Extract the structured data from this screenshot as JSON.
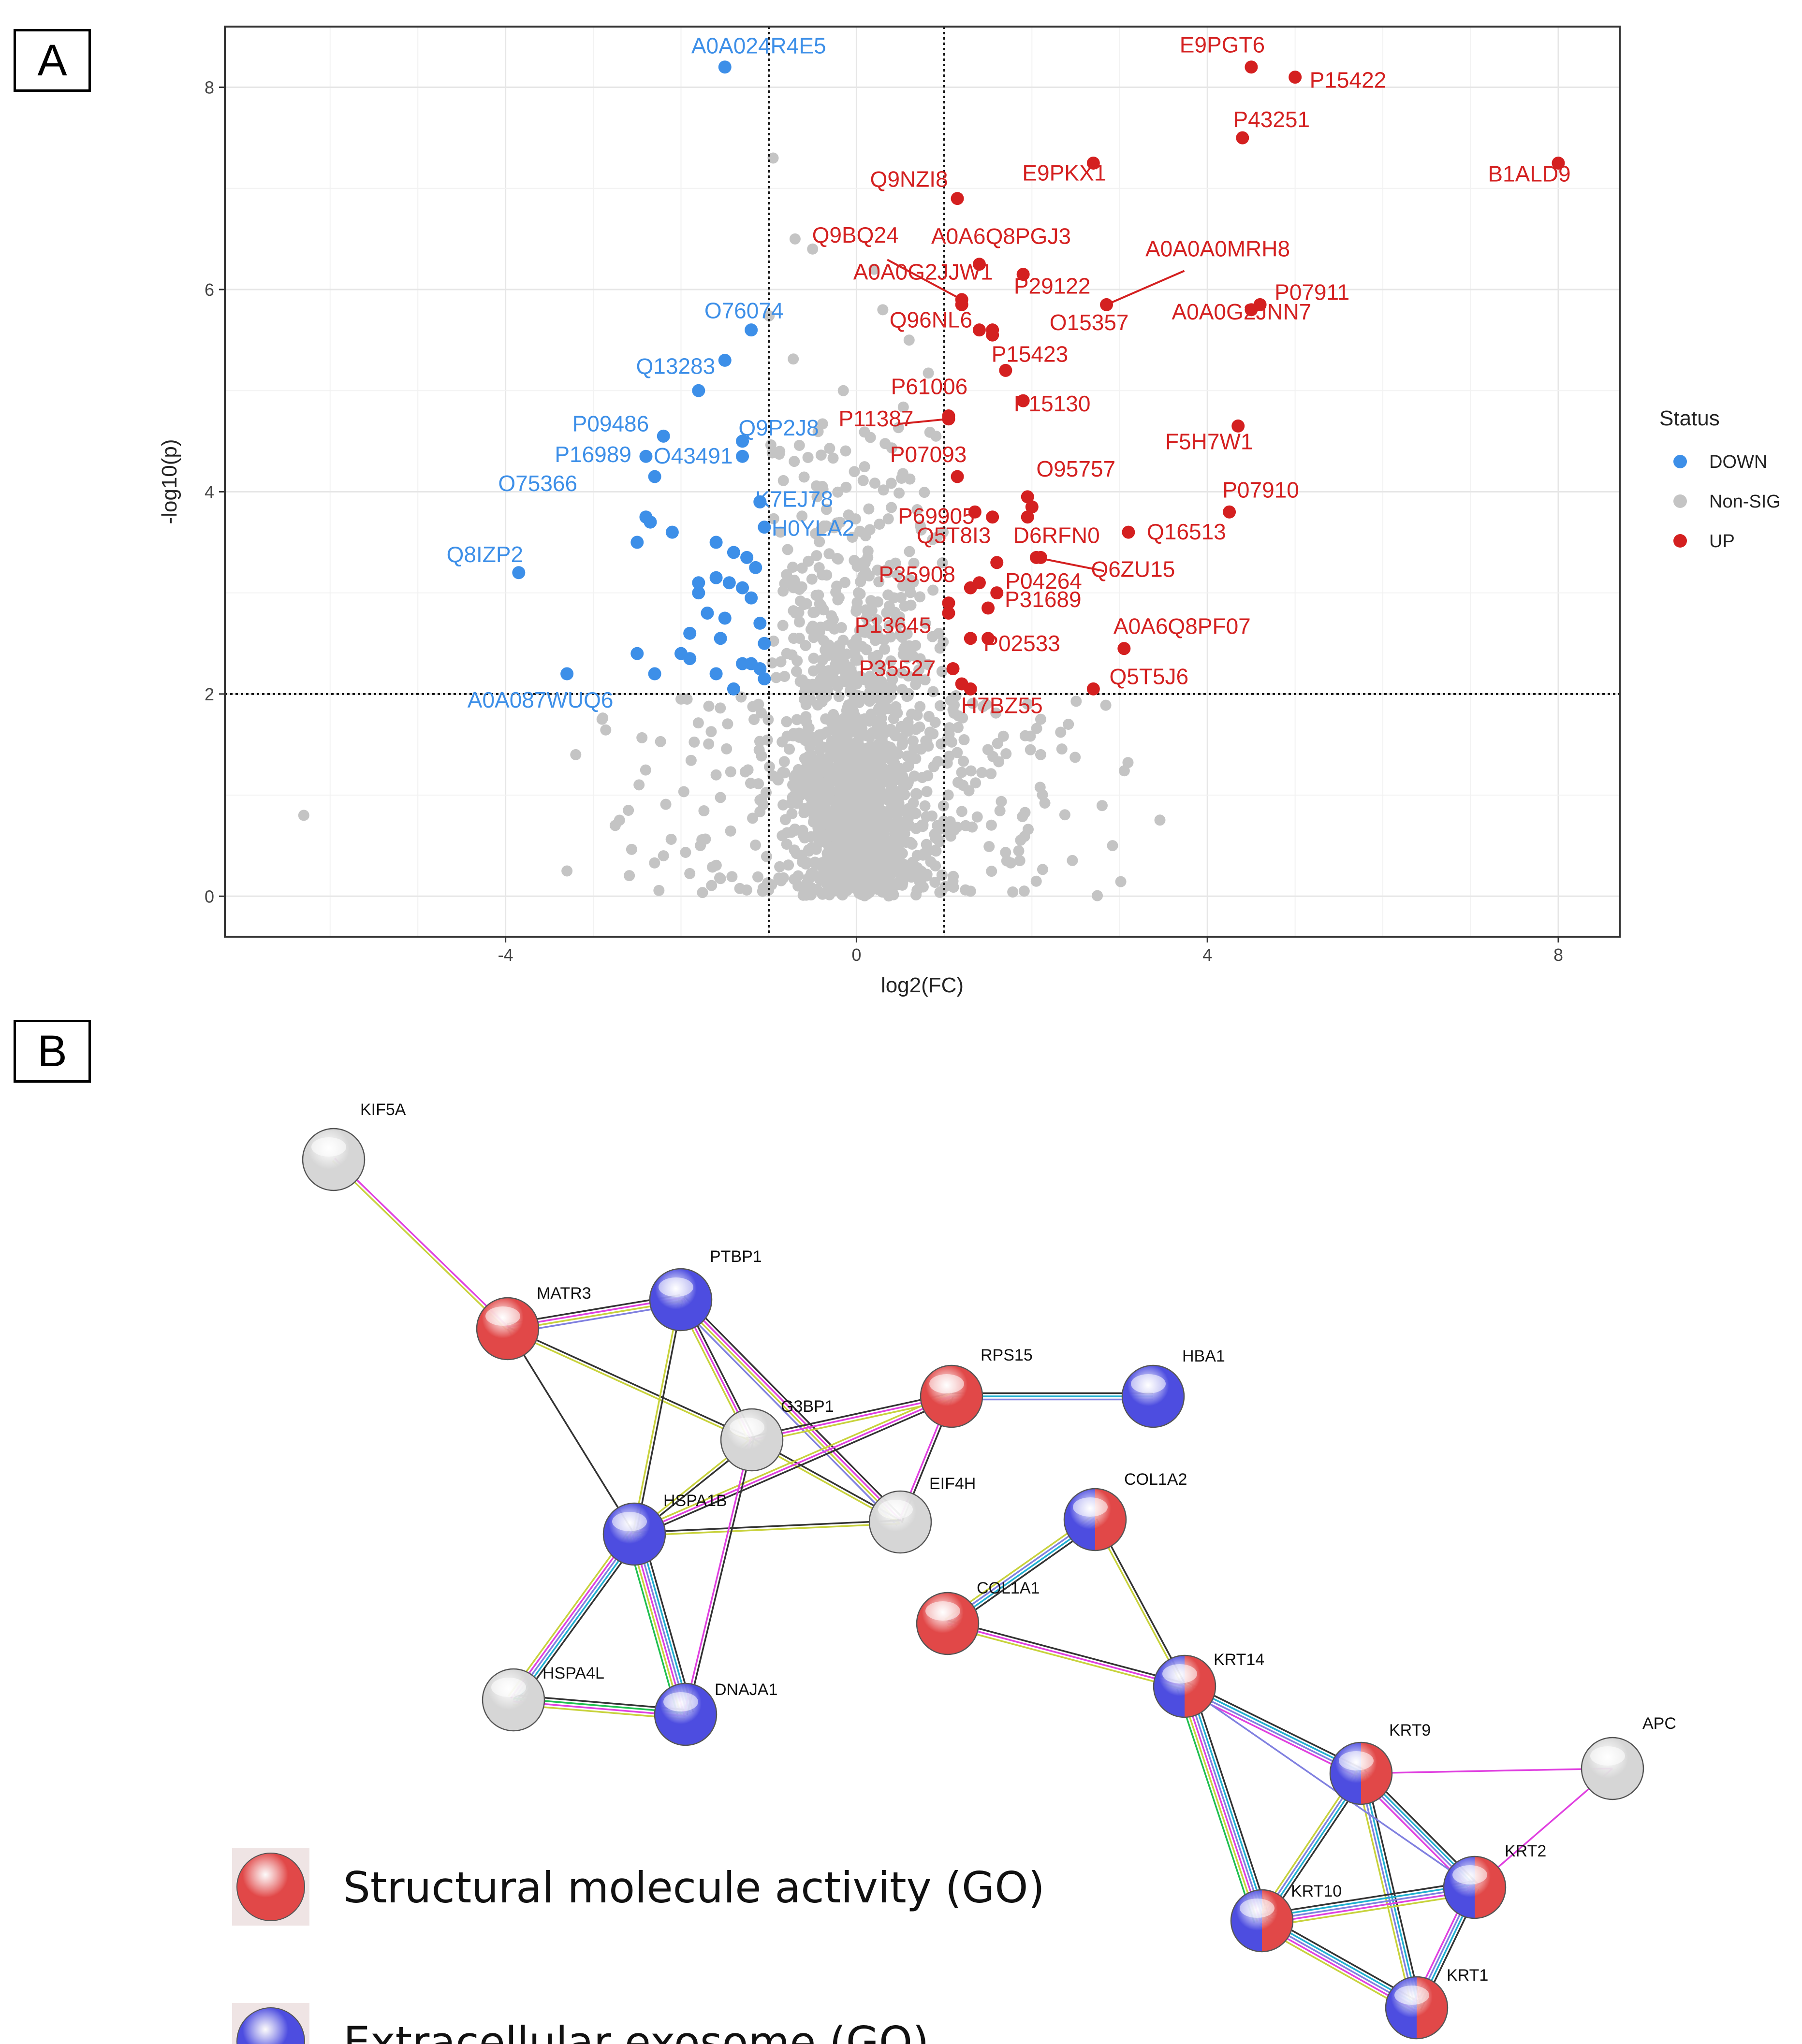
{
  "panels": {
    "a": "A",
    "b": "B"
  },
  "chart_data": {
    "type": "scatter",
    "xlabel": "log2(FC)",
    "ylabel": "-log10(p)",
    "xlim": [
      -7.2,
      8.7
    ],
    "ylim": [
      -0.4,
      8.6
    ],
    "x_ticks": [
      -4,
      0,
      4,
      8
    ],
    "y_ticks": [
      0,
      2,
      4,
      6,
      8
    ],
    "grid": true,
    "thresholds": {
      "x": [
        -1,
        1
      ],
      "y": 2
    },
    "legend": {
      "title": "Status",
      "position": "right",
      "items": [
        {
          "label": "DOWN",
          "color": "#3d8fe8"
        },
        {
          "label": "Non-SIG",
          "color": "#c4c4c4"
        },
        {
          "label": "UP",
          "color": "#d42020"
        }
      ]
    },
    "colors": {
      "DOWN": "#3d8fe8",
      "NON_SIG": "#c4c4c4",
      "UP": "#d42020"
    },
    "labeled_points": [
      {
        "label": "A0A024R4E5",
        "x": -1.5,
        "y": 8.2,
        "status": "DOWN"
      },
      {
        "label": "O76074",
        "x": -1.2,
        "y": 5.6,
        "status": "DOWN"
      },
      {
        "label": "Q13283",
        "x": -1.5,
        "y": 5.3,
        "status": "DOWN"
      },
      {
        "label": "P09486",
        "x": -2.2,
        "y": 4.55,
        "status": "DOWN"
      },
      {
        "label": "Q9P2J8",
        "x": -1.3,
        "y": 4.5,
        "status": "DOWN"
      },
      {
        "label": "P16989",
        "x": -2.4,
        "y": 4.35,
        "status": "DOWN"
      },
      {
        "label": "O43491",
        "x": -1.3,
        "y": 4.35,
        "status": "DOWN"
      },
      {
        "label": "O75366",
        "x": -2.3,
        "y": 4.15,
        "status": "DOWN"
      },
      {
        "label": "K7EJ78",
        "x": -1.1,
        "y": 3.9,
        "status": "DOWN"
      },
      {
        "label": "H0YLA2",
        "x": -1.05,
        "y": 3.65,
        "status": "DOWN"
      },
      {
        "label": "Q8IZP2",
        "x": -3.85,
        "y": 3.2,
        "status": "DOWN"
      },
      {
        "label": "A0A087WUQ6",
        "x": -3.3,
        "y": 2.2,
        "status": "DOWN"
      },
      {
        "label": "E9PGT6",
        "x": 4.5,
        "y": 8.2,
        "status": "UP"
      },
      {
        "label": "P15422",
        "x": 5.0,
        "y": 8.1,
        "status": "UP"
      },
      {
        "label": "P43251",
        "x": 4.4,
        "y": 7.5,
        "status": "UP"
      },
      {
        "label": "B1ALD9",
        "x": 8.0,
        "y": 7.25,
        "status": "UP"
      },
      {
        "label": "E9PKX1",
        "x": 2.7,
        "y": 7.25,
        "status": "UP"
      },
      {
        "label": "Q9NZI8",
        "x": 1.15,
        "y": 6.9,
        "status": "UP"
      },
      {
        "label": "Q9BQ24",
        "x": 1.2,
        "y": 5.9,
        "status": "UP"
      },
      {
        "label": "A0A6Q8PGJ3",
        "x": 1.4,
        "y": 6.25,
        "status": "UP"
      },
      {
        "label": "A0A0G2JJW1",
        "x": 1.2,
        "y": 5.85,
        "status": "UP"
      },
      {
        "label": "P29122",
        "x": 1.9,
        "y": 6.15,
        "status": "UP"
      },
      {
        "label": "A0A0A0MRH8",
        "x": 2.85,
        "y": 5.85,
        "status": "UP"
      },
      {
        "label": "P07911",
        "x": 4.6,
        "y": 5.85,
        "status": "UP"
      },
      {
        "label": "Q96NL6",
        "x": 1.4,
        "y": 5.6,
        "status": "UP"
      },
      {
        "label": "O15357",
        "x": 1.55,
        "y": 5.55,
        "status": "UP"
      },
      {
        "label": "A0A0G2JNN7",
        "x": 4.5,
        "y": 5.8,
        "status": "UP"
      },
      {
        "label": "P15423",
        "x": 1.7,
        "y": 5.2,
        "status": "UP"
      },
      {
        "label": "P61006",
        "x": 1.05,
        "y": 4.75,
        "status": "UP"
      },
      {
        "label": "P11387",
        "x": 1.05,
        "y": 4.72,
        "status": "UP"
      },
      {
        "label": "P15130",
        "x": 1.9,
        "y": 4.9,
        "status": "UP"
      },
      {
        "label": "F5H7W1",
        "x": 4.35,
        "y": 4.65,
        "status": "UP"
      },
      {
        "label": "P07093",
        "x": 1.15,
        "y": 4.15,
        "status": "UP"
      },
      {
        "label": "O95757",
        "x": 1.95,
        "y": 3.95,
        "status": "UP"
      },
      {
        "label": "P07910",
        "x": 4.25,
        "y": 3.8,
        "status": "UP"
      },
      {
        "label": "P69905",
        "x": 1.35,
        "y": 3.8,
        "status": "UP"
      },
      {
        "label": "D6RFN0",
        "x": 1.95,
        "y": 3.75,
        "status": "UP"
      },
      {
        "label": "Q16513",
        "x": 3.1,
        "y": 3.6,
        "status": "UP"
      },
      {
        "label": "Q5T8I3",
        "x": 1.55,
        "y": 3.75,
        "status": "UP"
      },
      {
        "label": "Q6ZU15",
        "x": 2.05,
        "y": 3.35,
        "status": "UP"
      },
      {
        "label": "P35908",
        "x": 1.6,
        "y": 3.3,
        "status": "UP"
      },
      {
        "label": "P31689",
        "x": 1.3,
        "y": 3.05,
        "status": "UP"
      },
      {
        "label": "P13645",
        "x": 1.05,
        "y": 2.9,
        "status": "UP"
      },
      {
        "label": "P04264",
        "x": 1.5,
        "y": 2.85,
        "status": "UP"
      },
      {
        "label": "A0A6Q8PF07",
        "x": 3.05,
        "y": 2.45,
        "status": "UP"
      },
      {
        "label": "P35527",
        "x": 1.1,
        "y": 2.25,
        "status": "UP"
      },
      {
        "label": "P02533",
        "x": 1.5,
        "y": 2.55,
        "status": "UP"
      },
      {
        "label": "Q5T5J6",
        "x": 2.7,
        "y": 2.05,
        "status": "UP"
      },
      {
        "label": "H7BZ55",
        "x": 1.3,
        "y": 2.05,
        "status": "UP"
      }
    ],
    "unlabeled_down": [
      [
        -1.8,
        5.0
      ],
      [
        -2.4,
        3.75
      ],
      [
        -2.35,
        3.7
      ],
      [
        -2.5,
        3.5
      ],
      [
        -1.6,
        3.5
      ],
      [
        -1.4,
        3.4
      ],
      [
        -1.25,
        3.35
      ],
      [
        -1.15,
        3.25
      ],
      [
        -1.6,
        3.15
      ],
      [
        -1.45,
        3.1
      ],
      [
        -1.3,
        3.05
      ],
      [
        -1.8,
        3.0
      ],
      [
        -1.2,
        2.95
      ],
      [
        -1.7,
        2.8
      ],
      [
        -1.5,
        2.75
      ],
      [
        -1.1,
        2.7
      ],
      [
        -1.9,
        2.6
      ],
      [
        -1.55,
        2.55
      ],
      [
        -1.05,
        2.5
      ],
      [
        -2.5,
        2.4
      ],
      [
        -1.9,
        2.35
      ],
      [
        -2.0,
        2.4
      ],
      [
        -1.3,
        2.3
      ],
      [
        -1.1,
        2.25
      ],
      [
        -2.3,
        2.2
      ],
      [
        -1.6,
        2.2
      ],
      [
        -1.05,
        2.15
      ],
      [
        -1.2,
        2.3
      ],
      [
        -1.4,
        2.05
      ],
      [
        -2.1,
        3.6
      ],
      [
        -1.8,
        3.1
      ],
      [
        -1.1,
        3.9
      ]
    ],
    "unlabeled_up": [
      [
        1.55,
        5.6
      ],
      [
        2.0,
        3.85
      ],
      [
        1.3,
        2.55
      ],
      [
        1.2,
        2.1
      ],
      [
        1.05,
        2.8
      ],
      [
        1.6,
        3.0
      ],
      [
        2.1,
        3.35
      ],
      [
        1.4,
        3.1
      ]
    ],
    "nonsig_seed": 20240601
  },
  "network": {
    "nodes": [
      {
        "id": "KIF5A",
        "fill": [
          "#e6e6e6"
        ]
      },
      {
        "id": "MATR3",
        "fill": [
          "#e14848"
        ]
      },
      {
        "id": "PTBP1",
        "fill": [
          "#4d4de0"
        ]
      },
      {
        "id": "G3BP1",
        "fill": [
          "#e6e6e6"
        ]
      },
      {
        "id": "RPS15",
        "fill": [
          "#e14848"
        ]
      },
      {
        "id": "HBA1",
        "fill": [
          "#4d4de0"
        ]
      },
      {
        "id": "EIF4H",
        "fill": [
          "#e6e6e6"
        ]
      },
      {
        "id": "HSPA1B",
        "fill": [
          "#4d4de0"
        ]
      },
      {
        "id": "HSPA4L",
        "fill": [
          "#e6e6e6"
        ]
      },
      {
        "id": "DNAJA1",
        "fill": [
          "#4d4de0"
        ]
      },
      {
        "id": "COL1A2",
        "fill": [
          "#4d4de0",
          "#e14848"
        ]
      },
      {
        "id": "COL1A1",
        "fill": [
          "#e14848"
        ]
      },
      {
        "id": "KRT14",
        "fill": [
          "#4d4de0",
          "#e14848"
        ]
      },
      {
        "id": "KRT9",
        "fill": [
          "#4d4de0",
          "#e14848"
        ]
      },
      {
        "id": "APC",
        "fill": [
          "#e6e6e6"
        ]
      },
      {
        "id": "KRT10",
        "fill": [
          "#4d4de0",
          "#e14848"
        ]
      },
      {
        "id": "KRT2",
        "fill": [
          "#4d4de0",
          "#e14848"
        ]
      },
      {
        "id": "KRT1",
        "fill": [
          "#4d4de0",
          "#e14848"
        ]
      }
    ],
    "edges": [
      {
        "a": "KIF5A",
        "b": "MATR3",
        "colors": [
          "#e040e0",
          "#c8d23c"
        ]
      },
      {
        "a": "MATR3",
        "b": "PTBP1",
        "colors": [
          "#333333",
          "#e040e0",
          "#c8d23c",
          "#8080e0"
        ]
      },
      {
        "a": "MATR3",
        "b": "G3BP1",
        "colors": [
          "#333333",
          "#c8d23c"
        ]
      },
      {
        "a": "MATR3",
        "b": "HSPA1B",
        "colors": [
          "#333333"
        ]
      },
      {
        "a": "PTBP1",
        "b": "G3BP1",
        "colors": [
          "#333333",
          "#e040e0",
          "#c8d23c"
        ]
      },
      {
        "a": "PTBP1",
        "b": "HSPA1B",
        "colors": [
          "#333333",
          "#c8d23c"
        ]
      },
      {
        "a": "PTBP1",
        "b": "EIF4H",
        "colors": [
          "#333333",
          "#e040e0",
          "#c8d23c",
          "#8080e0"
        ]
      },
      {
        "a": "G3BP1",
        "b": "RPS15",
        "colors": [
          "#333333",
          "#e040e0",
          "#c8d23c"
        ]
      },
      {
        "a": "G3BP1",
        "b": "EIF4H",
        "colors": [
          "#333333",
          "#c8d23c"
        ]
      },
      {
        "a": "G3BP1",
        "b": "HSPA1B",
        "colors": [
          "#333333",
          "#c8d23c"
        ]
      },
      {
        "a": "RPS15",
        "b": "HBA1",
        "colors": [
          "#333333",
          "#20b0d0",
          "#8080e0"
        ]
      },
      {
        "a": "RPS15",
        "b": "EIF4H",
        "colors": [
          "#333333",
          "#e040e0"
        ]
      },
      {
        "a": "RPS15",
        "b": "HSPA1B",
        "colors": [
          "#333333",
          "#e040e0",
          "#c8d23c"
        ]
      },
      {
        "a": "HSPA1B",
        "b": "HSPA4L",
        "colors": [
          "#333333",
          "#20b0d0",
          "#8080e0",
          "#e040e0",
          "#c8d23c"
        ]
      },
      {
        "a": "HSPA1B",
        "b": "DNAJA1",
        "colors": [
          "#333333",
          "#20b0d0",
          "#8080e0",
          "#e040e0",
          "#c8d23c",
          "#20c050"
        ]
      },
      {
        "a": "HSPA1B",
        "b": "EIF4H",
        "colors": [
          "#333333",
          "#c8d23c"
        ]
      },
      {
        "a": "HSPA4L",
        "b": "DNAJA1",
        "colors": [
          "#333333",
          "#20c050",
          "#e040e0",
          "#c8d23c"
        ]
      },
      {
        "a": "G3BP1",
        "b": "DNAJA1",
        "colors": [
          "#333333",
          "#e040e0"
        ]
      },
      {
        "a": "COL1A2",
        "b": "COL1A1",
        "colors": [
          "#333333",
          "#20b0d0",
          "#8080e0",
          "#c8d23c"
        ]
      },
      {
        "a": "COL1A2",
        "b": "KRT14",
        "colors": [
          "#333333",
          "#c8d23c"
        ]
      },
      {
        "a": "COL1A1",
        "b": "KRT14",
        "colors": [
          "#333333",
          "#e040e0",
          "#c8d23c"
        ]
      },
      {
        "a": "KRT14",
        "b": "KRT9",
        "colors": [
          "#333333",
          "#20b0d0",
          "#8080e0",
          "#e040e0"
        ]
      },
      {
        "a": "KRT14",
        "b": "KRT10",
        "colors": [
          "#333333",
          "#20b0d0",
          "#8080e0",
          "#e040e0",
          "#c8d23c",
          "#20c050"
        ]
      },
      {
        "a": "KRT9",
        "b": "KRT10",
        "colors": [
          "#333333",
          "#20b0d0",
          "#8080e0",
          "#c8d23c"
        ]
      },
      {
        "a": "KRT9",
        "b": "KRT2",
        "colors": [
          "#333333",
          "#20b0d0",
          "#8080e0",
          "#e040e0"
        ]
      },
      {
        "a": "KRT9",
        "b": "KRT1",
        "colors": [
          "#333333",
          "#20b0d0",
          "#8080e0",
          "#c8d23c"
        ]
      },
      {
        "a": "KRT9",
        "b": "APC",
        "colors": [
          "#e040e0"
        ]
      },
      {
        "a": "APC",
        "b": "KRT2",
        "colors": [
          "#e040e0"
        ]
      },
      {
        "a": "KRT10",
        "b": "KRT2",
        "colors": [
          "#333333",
          "#20b0d0",
          "#8080e0",
          "#e040e0",
          "#c8d23c"
        ]
      },
      {
        "a": "KRT10",
        "b": "KRT1",
        "colors": [
          "#333333",
          "#20b0d0",
          "#8080e0",
          "#e040e0",
          "#c8d23c"
        ]
      },
      {
        "a": "KRT2",
        "b": "KRT1",
        "colors": [
          "#333333",
          "#20b0d0",
          "#8080e0",
          "#e040e0"
        ]
      },
      {
        "a": "KRT14",
        "b": "KRT2",
        "colors": [
          "#8080e0"
        ]
      }
    ],
    "go_legend": [
      {
        "label": "Structural molecule activity (GO)",
        "color": "#e14848"
      },
      {
        "label": "Extracellular exosome (GO)",
        "color": "#4d4de0"
      }
    ]
  }
}
